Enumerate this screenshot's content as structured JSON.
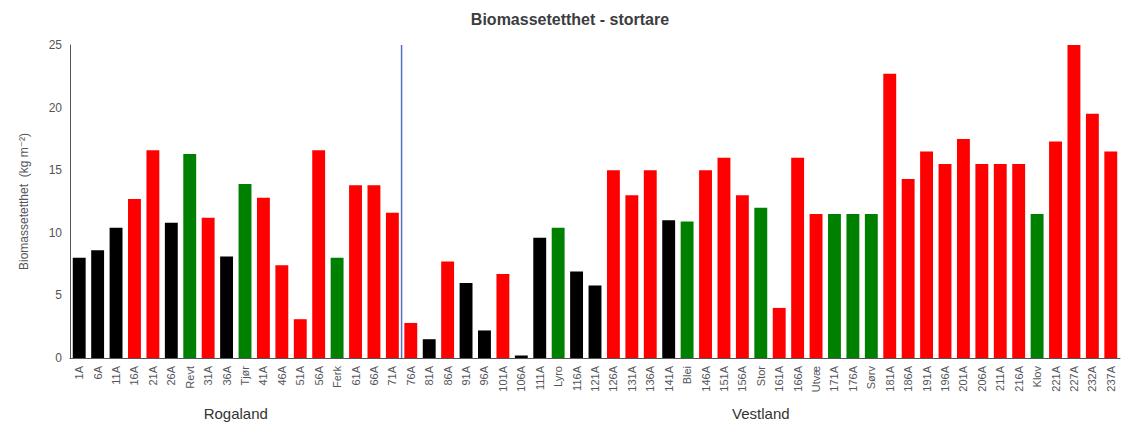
{
  "chart_data": {
    "type": "bar",
    "title": "Biomassetetthet - stortare",
    "ylabel": "Biomassetetthet  (kg m⁻²)",
    "categories": [
      "1A",
      "6A",
      "11A",
      "16A",
      "21A",
      "26A",
      "Revt",
      "31A",
      "36A",
      "Tjør",
      "41A",
      "46A",
      "51A",
      "56A",
      "Ferk",
      "61A",
      "66A",
      "71A",
      "76A",
      "81A",
      "86A",
      "91A",
      "96A",
      "101A",
      "106A",
      "111A",
      "Lyro",
      "116A",
      "121A",
      "126A",
      "131A",
      "136A",
      "141A",
      "Blei",
      "146A",
      "151A",
      "156A",
      "Stor",
      "161A",
      "166A",
      "Utvæ",
      "171A",
      "176A",
      "Sørv",
      "181A",
      "186A",
      "191A",
      "196A",
      "201A",
      "206A",
      "211A",
      "216A",
      "Klov",
      "221A",
      "227A",
      "232A",
      "237A"
    ],
    "values": [
      8.0,
      8.6,
      10.4,
      12.7,
      16.6,
      10.8,
      16.3,
      11.2,
      8.1,
      13.9,
      12.8,
      7.4,
      3.1,
      16.6,
      8.0,
      13.8,
      13.8,
      11.6,
      2.8,
      1.5,
      7.7,
      6.0,
      2.2,
      6.7,
      0.2,
      9.6,
      10.4,
      6.9,
      5.8,
      15.0,
      13.0,
      15.0,
      11.0,
      10.9,
      15.0,
      16.0,
      13.0,
      12.0,
      4.0,
      16.0,
      11.5,
      11.5,
      11.5,
      11.5,
      22.7,
      14.3,
      16.5,
      15.5,
      17.5,
      15.5,
      15.5,
      15.5,
      11.5,
      17.3,
      25.0,
      19.5,
      16.5
    ],
    "colors": [
      "#000000",
      "#000000",
      "#000000",
      "#ff0000",
      "#ff0000",
      "#000000",
      "#008000",
      "#ff0000",
      "#000000",
      "#008000",
      "#ff0000",
      "#ff0000",
      "#ff0000",
      "#ff0000",
      "#008000",
      "#ff0000",
      "#ff0000",
      "#ff0000",
      "#ff0000",
      "#000000",
      "#ff0000",
      "#000000",
      "#000000",
      "#ff0000",
      "#000000",
      "#000000",
      "#008000",
      "#000000",
      "#000000",
      "#ff0000",
      "#ff0000",
      "#ff0000",
      "#000000",
      "#008000",
      "#ff0000",
      "#ff0000",
      "#ff0000",
      "#008000",
      "#ff0000",
      "#ff0000",
      "#ff0000",
      "#008000",
      "#008000",
      "#008000",
      "#ff0000",
      "#ff0000",
      "#ff0000",
      "#ff0000",
      "#ff0000",
      "#ff0000",
      "#ff0000",
      "#ff0000",
      "#008000",
      "#ff0000",
      "#ff0000",
      "#ff0000",
      "#ff0000"
    ],
    "ylim": [
      0,
      25
    ],
    "yticks": [
      0,
      5,
      10,
      15,
      20,
      25
    ],
    "annotations": [
      {
        "text": "Rogaland",
        "from": "1A",
        "to": "71A"
      },
      {
        "text": "Vestland",
        "from": "76A",
        "to": "237A"
      }
    ]
  }
}
